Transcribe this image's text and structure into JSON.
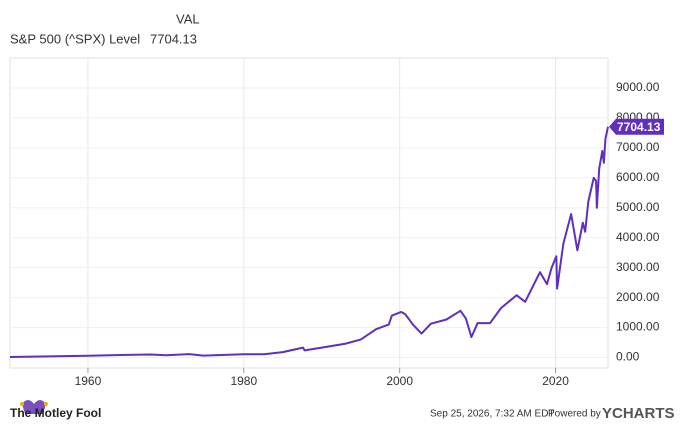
{
  "chart_data": {
    "type": "line",
    "value_header": "VAL",
    "x": [
      1950,
      1955,
      1960,
      1965,
      1968,
      1970,
      1973,
      1974.8,
      1980,
      1982.6,
      1985,
      1987.6,
      1987.8,
      1990,
      1993,
      1995,
      1997,
      1998.6,
      1999,
      2000.2,
      2000.7,
      2001.7,
      2002.8,
      2004,
      2006,
      2007.8,
      2008.5,
      2009.2,
      2010,
      2011.6,
      2013,
      2015,
      2016.1,
      2018,
      2018.9,
      2019.5,
      2020.1,
      2020.2,
      2021,
      2022.0,
      2022.8,
      2023.5,
      2023.8,
      2024.2,
      2024.9,
      2025.2,
      2025.3,
      2025.6,
      2026.0,
      2026.2,
      2026.4,
      2026.73
    ],
    "series": [
      {
        "name": "S&P 500 (^SPX) Level",
        "color": "#5e2fc0",
        "values": [
          17,
          40,
          58,
          90,
          100,
          75,
          115,
          65,
          110,
          110,
          180,
          330,
          240,
          330,
          460,
          600,
          950,
          1100,
          1400,
          1520,
          1450,
          1100,
          800,
          1130,
          1270,
          1560,
          1300,
          680,
          1150,
          1150,
          1650,
          2080,
          1860,
          2850,
          2450,
          3000,
          3380,
          2300,
          3800,
          4790,
          3580,
          4500,
          4200,
          5200,
          6000,
          5900,
          5000,
          6300,
          6900,
          6500,
          7300,
          7704.13
        ]
      }
    ],
    "xlim": [
      1950,
      2026.73
    ],
    "xticks": [
      1960,
      1980,
      2000,
      2020
    ],
    "ylim": [
      -350,
      10000
    ],
    "yticks": [
      {
        "value": 0,
        "label": "0.00"
      },
      {
        "value": 1000,
        "label": "1000.00"
      },
      {
        "value": 2000,
        "label": "2000.00"
      },
      {
        "value": 3000,
        "label": "3000.00"
      },
      {
        "value": 4000,
        "label": "4000.00"
      },
      {
        "value": 5000,
        "label": "5000.00"
      },
      {
        "value": 6000,
        "label": "6000.00"
      },
      {
        "value": 7000,
        "label": "7000.00"
      },
      {
        "value": 8000,
        "label": "8000.00"
      },
      {
        "value": 9000,
        "label": "9000.00"
      }
    ],
    "grid": true
  },
  "footer": {
    "brand": "The Motley Fool",
    "timestamp": "Sep 25, 2026, 7:32 AM EDT",
    "powered_by": "Powered by",
    "provider": "YCHARTS"
  }
}
